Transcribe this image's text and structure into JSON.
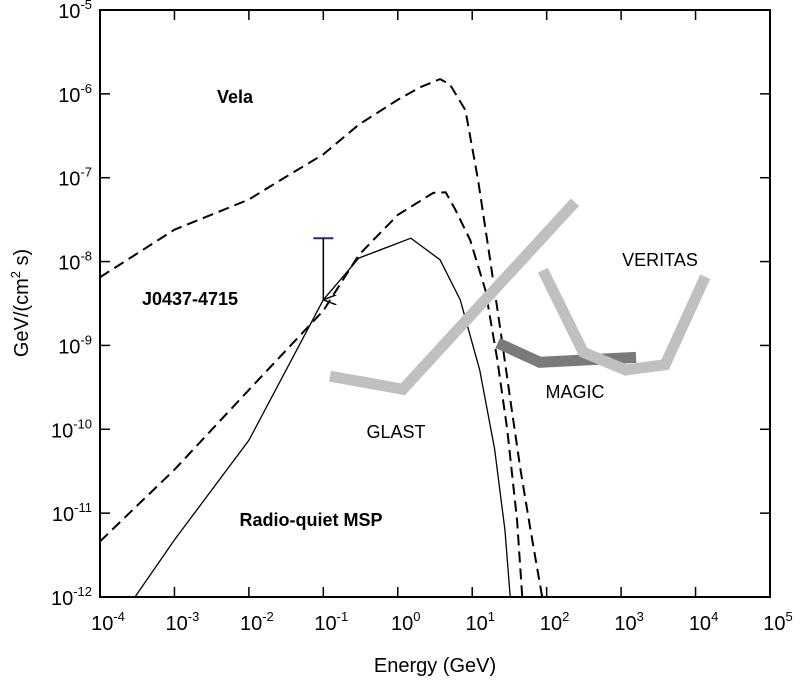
{
  "chart_data": {
    "type": "line",
    "x_scale": "log",
    "y_scale": "log",
    "xlim": [
      0.0001,
      100000
    ],
    "ylim": [
      1e-12,
      1e-05
    ],
    "xticks": [
      {
        "value": 0.0001,
        "label": "10",
        "sup": "-4"
      },
      {
        "value": 0.001,
        "label": "10",
        "sup": "-3"
      },
      {
        "value": 0.01,
        "label": "10",
        "sup": "-2"
      },
      {
        "value": 0.1,
        "label": "10",
        "sup": "-1"
      },
      {
        "value": 1,
        "label": "10",
        "sup": "0"
      },
      {
        "value": 10,
        "label": "10",
        "sup": "1"
      },
      {
        "value": 100,
        "label": "10",
        "sup": "2"
      },
      {
        "value": 1000,
        "label": "10",
        "sup": "3"
      },
      {
        "value": 10000,
        "label": "10",
        "sup": "4"
      },
      {
        "value": 100000,
        "label": "10",
        "sup": "5"
      }
    ],
    "yticks": [
      {
        "value": 1e-12,
        "label": "10",
        "sup": "-12"
      },
      {
        "value": 1e-11,
        "label": "10",
        "sup": "-11"
      },
      {
        "value": 1e-10,
        "label": "10",
        "sup": "-10"
      },
      {
        "value": 1e-09,
        "label": "10",
        "sup": "-9"
      },
      {
        "value": 1e-08,
        "label": "10",
        "sup": "-8"
      },
      {
        "value": 1e-07,
        "label": "10",
        "sup": "-7"
      },
      {
        "value": 1e-06,
        "label": "10",
        "sup": "-6"
      },
      {
        "value": 1e-05,
        "label": "10",
        "sup": "-5"
      }
    ],
    "x_label": "Energy (GeV)",
    "y_label": {
      "text": "GeV/(cm",
      "sup": "2",
      "tail": " s)"
    },
    "series": [
      {
        "name": "Vela",
        "color": "#000000",
        "dash": true,
        "bold": true,
        "x": [
          0.0001,
          0.001,
          0.01,
          0.03,
          0.1,
          0.3,
          1,
          2,
          3.7,
          5,
          8.1,
          12,
          17.4,
          24,
          32.6,
          44.5,
          60.7,
          87
        ],
        "values": [
          6.5e-09,
          2.4e-08,
          5.5e-08,
          1e-07,
          1.9e-07,
          4.3e-07,
          8.5e-07,
          1.2e-06,
          1.5e-06,
          1.3e-06,
          6.4e-07,
          9.3e-08,
          1.05e-08,
          1.5e-09,
          2.2e-10,
          3.3e-11,
          6.3e-12,
          1e-12
        ]
      },
      {
        "name": "J0437-4715",
        "color": "#000000",
        "dash": true,
        "bold": true,
        "x": [
          0.0001,
          0.001,
          0.01,
          0.1,
          0.3,
          1,
          3,
          4.4,
          5.9,
          9.4,
          15,
          21.7,
          29.5,
          40,
          47
        ],
        "values": [
          4.6e-12,
          3.3e-11,
          2.95e-10,
          2.6e-09,
          1.2e-08,
          3.6e-08,
          6.6e-08,
          6.7e-08,
          4.2e-08,
          1.8e-08,
          4.6e-09,
          6.8e-10,
          1e-10,
          8.3e-12,
          1e-12
        ]
      },
      {
        "name": "Radio-quiet MSP",
        "color": "#000000",
        "dash": false,
        "bold": true,
        "x": [
          0.000295,
          0.001,
          0.01,
          0.1,
          0.3,
          1.5,
          3.7,
          6.9,
          12.6,
          20,
          27.5,
          32.4
        ],
        "values": [
          1e-12,
          4.8e-12,
          7.4e-11,
          3.5e-09,
          1.1e-08,
          1.9e-08,
          1.05e-08,
          3.5e-09,
          5.1e-10,
          5.8e-11,
          6.3e-12,
          1e-12
        ]
      },
      {
        "name": "GLAST",
        "color": "#c0c0c0",
        "dash": false,
        "bold": false,
        "thick": true,
        "x": [
          0.123,
          1.17,
          240
        ],
        "values": [
          4.3e-10,
          3e-10,
          5.1e-08
        ]
      },
      {
        "name": "MAGIC",
        "color": "#7a7a7a",
        "dash": false,
        "bold": false,
        "thick": true,
        "x": [
          22,
          81,
          1590
        ],
        "values": [
          1.07e-09,
          6.3e-10,
          7.2e-10
        ]
      },
      {
        "name": "VERITAS",
        "color": "#c0c0c0",
        "dash": false,
        "bold": false,
        "thick": true,
        "x": [
          89,
          310,
          1150,
          3900,
          13500
        ],
        "values": [
          7.9e-09,
          8.3e-10,
          5.1e-10,
          5.9e-10,
          6.6e-09
        ]
      }
    ],
    "upper_limits": [
      {
        "x": 0.1,
        "value": 1.9e-08,
        "to": 3.5e-09,
        "color": "#1f2a7a"
      }
    ]
  }
}
